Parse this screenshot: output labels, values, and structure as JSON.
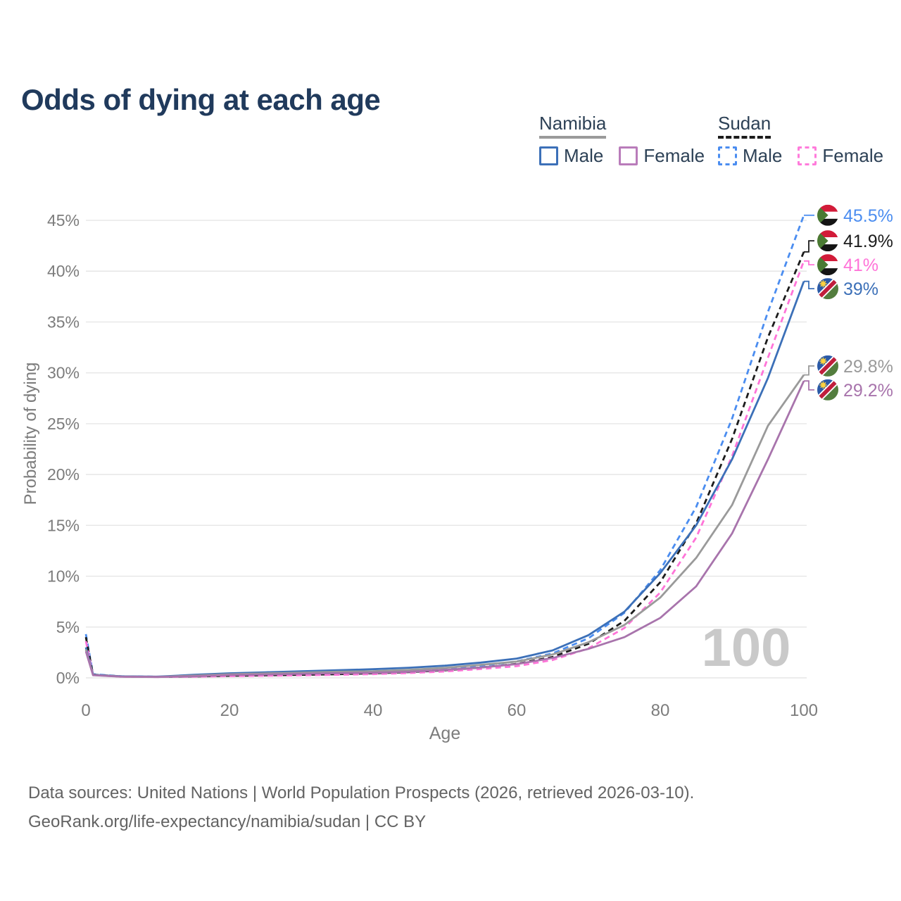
{
  "title": "Odds of dying at each age",
  "legend": {
    "groups": [
      {
        "label": "Namibia",
        "line_style": "solid",
        "line_color": "#9a9a9a",
        "items": [
          {
            "label": "Male",
            "color": "#3c70b8",
            "style": "solid"
          },
          {
            "label": "Female",
            "color": "#b97cba",
            "style": "solid"
          }
        ]
      },
      {
        "label": "Sudan",
        "line_style": "dashed",
        "line_color": "#1c1c1c",
        "items": [
          {
            "label": "Male",
            "color": "#4b8df0",
            "style": "dashed"
          },
          {
            "label": "Female",
            "color": "#ff7bdb",
            "style": "dashed"
          }
        ]
      }
    ]
  },
  "chart_data": {
    "type": "line",
    "title": "Odds of dying at each age",
    "xlabel": "Age",
    "ylabel": "Probability of dying",
    "xlim": [
      0,
      100
    ],
    "ylim": [
      0,
      47
    ],
    "x_ticks": [
      0,
      20,
      40,
      60,
      80,
      100
    ],
    "y_ticks": [
      "0%",
      "5%",
      "10%",
      "15%",
      "20%",
      "25%",
      "30%",
      "35%",
      "40%",
      "45%"
    ],
    "grid": "horizontal",
    "legend_position": "top-right",
    "hover_age_indicator": "100",
    "ages": [
      0,
      1,
      5,
      10,
      15,
      20,
      25,
      30,
      35,
      40,
      45,
      50,
      55,
      60,
      65,
      70,
      75,
      80,
      85,
      90,
      95,
      100
    ],
    "series": [
      {
        "name": "Sudan Male",
        "country": "Sudan",
        "sex": "Male",
        "color": "#4b8df0",
        "dash": true,
        "flag": "sudan",
        "end_label": "45.5%",
        "end_value": 45.5,
        "values": [
          4.3,
          0.35,
          0.15,
          0.12,
          0.16,
          0.25,
          0.3,
          0.36,
          0.43,
          0.52,
          0.65,
          0.85,
          1.2,
          1.62,
          2.4,
          3.9,
          6.4,
          10.6,
          16.8,
          25.5,
          36.0,
          45.5
        ]
      },
      {
        "name": "Sudan",
        "country": "Sudan",
        "sex": "Both",
        "color": "#1c1c1c",
        "dash": true,
        "flag": "sudan",
        "end_label": "41.9%",
        "end_value": 41.9,
        "values": [
          4.0,
          0.32,
          0.13,
          0.1,
          0.13,
          0.2,
          0.25,
          0.3,
          0.36,
          0.44,
          0.56,
          0.74,
          1.02,
          1.38,
          2.05,
          3.35,
          5.6,
          9.4,
          15.2,
          23.5,
          33.5,
          41.9
        ]
      },
      {
        "name": "Sudan Female",
        "country": "Sudan",
        "sex": "Female",
        "color": "#ff74d8",
        "dash": true,
        "flag": "sudan",
        "end_label": "41%",
        "end_value": 41,
        "values": [
          3.6,
          0.28,
          0.11,
          0.09,
          0.11,
          0.17,
          0.21,
          0.25,
          0.3,
          0.37,
          0.47,
          0.63,
          0.87,
          1.15,
          1.75,
          2.9,
          4.9,
          8.4,
          13.8,
          21.8,
          31.5,
          41.0
        ]
      },
      {
        "name": "Namibia Male",
        "country": "Namibia",
        "sex": "Male",
        "color": "#3c70b8",
        "dash": false,
        "flag": "namibia",
        "end_label": "39%",
        "end_value": 39,
        "values": [
          3.0,
          0.3,
          0.15,
          0.12,
          0.3,
          0.45,
          0.55,
          0.65,
          0.75,
          0.85,
          1.0,
          1.2,
          1.5,
          1.9,
          2.7,
          4.2,
          6.5,
          10.3,
          15.0,
          21.5,
          29.5,
          39.0
        ]
      },
      {
        "name": "Namibia",
        "country": "Namibia",
        "sex": "Both",
        "color": "#9a9a9a",
        "dash": false,
        "flag": "namibia",
        "end_label": "29.8%",
        "end_value": 29.8,
        "values": [
          2.8,
          0.28,
          0.13,
          0.1,
          0.22,
          0.35,
          0.44,
          0.52,
          0.6,
          0.65,
          0.78,
          0.98,
          1.28,
          1.6,
          2.3,
          3.5,
          5.2,
          7.9,
          11.8,
          17.0,
          24.8,
          29.8
        ]
      },
      {
        "name": "Namibia Female",
        "country": "Namibia",
        "sex": "Female",
        "color": "#a874ac",
        "dash": false,
        "flag": "namibia",
        "end_label": "29.2%",
        "end_value": 29.2,
        "values": [
          2.6,
          0.26,
          0.12,
          0.09,
          0.15,
          0.28,
          0.33,
          0.4,
          0.46,
          0.5,
          0.6,
          0.78,
          1.02,
          1.35,
          1.95,
          2.85,
          4.0,
          5.9,
          9.0,
          14.2,
          21.5,
          29.2
        ]
      }
    ]
  },
  "footer": {
    "line1": "Data sources: United Nations | World Population Prospects (2026, retrieved 2026-03-10).",
    "line2": "GeoRank.org/life-expectancy/namibia/sudan | CC BY"
  }
}
